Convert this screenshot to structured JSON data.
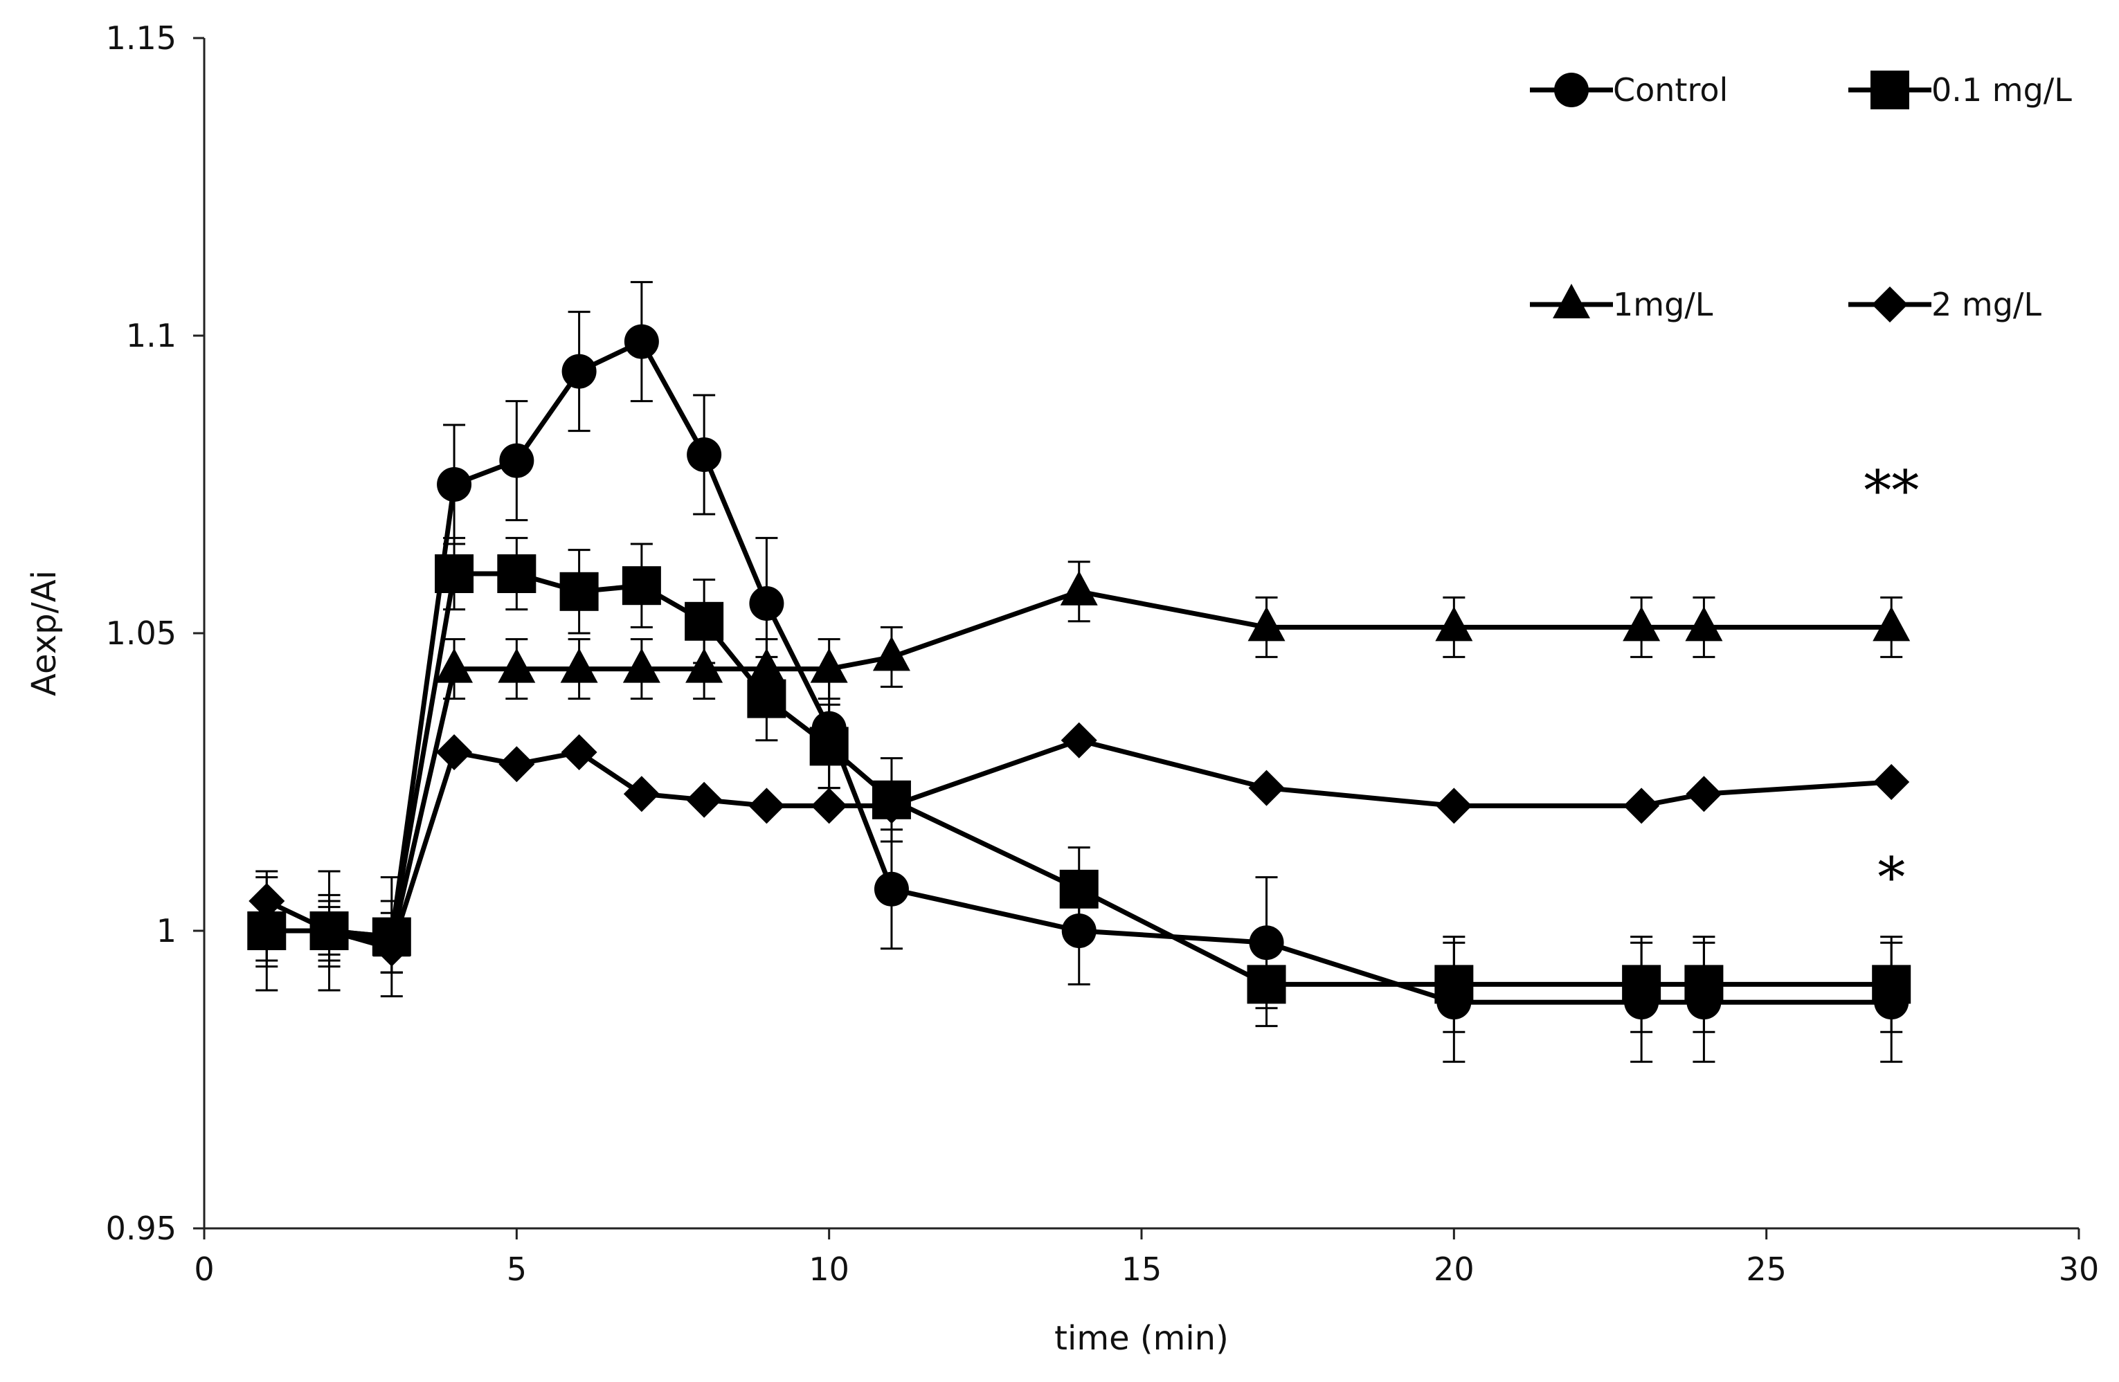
{
  "chart_data": {
    "type": "line",
    "title": "",
    "xlabel": "time (min)",
    "ylabel": "Aexp/Ai",
    "xlim": [
      0,
      30
    ],
    "ylim": [
      0.95,
      1.15
    ],
    "xticks": [
      0,
      5,
      10,
      15,
      20,
      25,
      30
    ],
    "xtick_labels": [
      "0",
      "5",
      "10",
      "15",
      "20",
      "25",
      "30"
    ],
    "yticks": [
      0.95,
      1,
      1.05,
      1.1,
      1.15
    ],
    "ytick_labels": [
      "0.95",
      "1",
      "1.05",
      "1.1",
      "1.15"
    ],
    "grid": false,
    "legend_position": "top-right",
    "series": [
      {
        "name": "Control",
        "marker": "circle",
        "x": [
          1,
          2,
          3,
          4,
          5,
          6,
          7,
          8,
          9,
          10,
          11,
          14,
          17,
          20,
          23,
          24,
          27
        ],
        "y": [
          1.0,
          1.0,
          0.999,
          1.075,
          1.079,
          1.094,
          1.099,
          1.08,
          1.055,
          1.034,
          1.007,
          1.0,
          0.998,
          0.988,
          0.988,
          0.988,
          0.988
        ],
        "err": [
          0.01,
          0.01,
          0.01,
          0.01,
          0.01,
          0.01,
          0.01,
          0.01,
          0.011,
          0.01,
          0.01,
          0.009,
          0.011,
          0.01,
          0.01,
          0.01,
          0.01
        ]
      },
      {
        "name": "0.1 mg/L",
        "marker": "square",
        "x": [
          1,
          2,
          3,
          4,
          5,
          6,
          7,
          8,
          9,
          10,
          11,
          14,
          17,
          20,
          23,
          24,
          27
        ],
        "y": [
          1.0,
          1.0,
          0.999,
          1.06,
          1.06,
          1.057,
          1.058,
          1.052,
          1.039,
          1.031,
          1.022,
          1.007,
          0.991,
          0.991,
          0.991,
          0.991,
          0.991
        ],
        "err": [
          0.006,
          0.006,
          0.006,
          0.006,
          0.006,
          0.007,
          0.007,
          0.007,
          0.007,
          0.007,
          0.007,
          0.007,
          0.007,
          0.008,
          0.008,
          0.008,
          0.008
        ]
      },
      {
        "name": "1mg/L",
        "marker": "triangle",
        "x": [
          1,
          2,
          3,
          4,
          5,
          6,
          7,
          8,
          9,
          10,
          11,
          14,
          17,
          20,
          23,
          24,
          27
        ],
        "y": [
          1.0,
          1.0,
          0.998,
          1.044,
          1.044,
          1.044,
          1.044,
          1.044,
          1.044,
          1.044,
          1.046,
          1.057,
          1.051,
          1.051,
          1.051,
          1.051,
          1.051
        ],
        "err": [
          0.005,
          0.005,
          0.005,
          0.005,
          0.005,
          0.005,
          0.005,
          0.005,
          0.005,
          0.005,
          0.005,
          0.005,
          0.005,
          0.005,
          0.005,
          0.005,
          0.005
        ]
      },
      {
        "name": "2 mg/L",
        "marker": "diamond",
        "x": [
          1,
          2,
          3,
          4,
          5,
          6,
          7,
          8,
          9,
          10,
          11,
          14,
          17,
          20,
          23,
          24,
          27
        ],
        "y": [
          1.005,
          1.0,
          0.997,
          1.03,
          1.028,
          1.03,
          1.023,
          1.022,
          1.021,
          1.021,
          1.021,
          1.032,
          1.024,
          1.021,
          1.021,
          1.023,
          1.025
        ],
        "err": [
          0.004,
          0.004,
          0.004,
          0,
          0,
          0,
          0,
          0,
          0,
          0,
          0,
          0,
          0,
          0,
          0,
          0,
          0
        ]
      }
    ],
    "annotations": [
      {
        "text": "**",
        "x": 27,
        "y": 1.074
      },
      {
        "text": "*",
        "x": 27,
        "y": 1.009
      }
    ]
  }
}
